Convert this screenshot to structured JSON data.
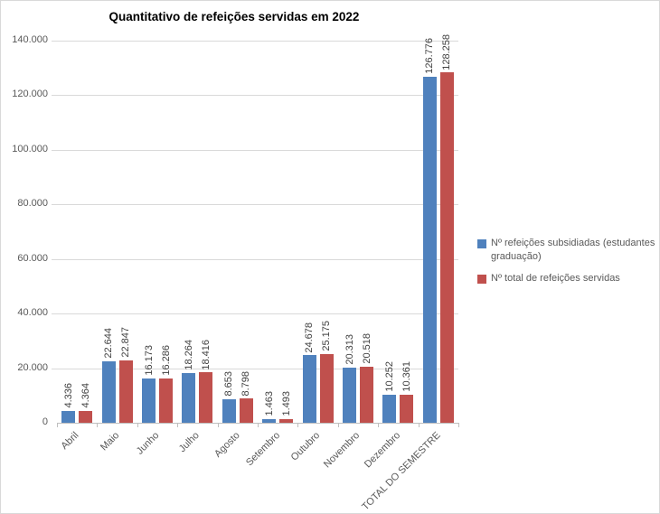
{
  "chart_data": {
    "type": "bar",
    "title": "Quantitativo de refeições servidas em 2022",
    "categories": [
      "Abril",
      "Maio",
      "Junho",
      "Julho",
      "Agosto",
      "Setembro",
      "Outubro",
      "Novembro",
      "Dezembro",
      "TOTAL DO SEMESTRE"
    ],
    "series": [
      {
        "name": "Nº refeições subsidiadas (estudantes graduação)",
        "color": "#4F81BD",
        "values": [
          4336,
          22644,
          16173,
          18264,
          8653,
          1463,
          24678,
          20313,
          10252,
          126776
        ],
        "labels": [
          "4.336",
          "22.644",
          "16.173",
          "18.264",
          "8.653",
          "1.463",
          "24.678",
          "20.313",
          "10.252",
          "126.776"
        ]
      },
      {
        "name": "Nº total de refeições servidas",
        "color": "#C0504D",
        "values": [
          4364,
          22847,
          16286,
          18416,
          8798,
          1493,
          25175,
          20518,
          10361,
          128258
        ],
        "labels": [
          "4.364",
          "22.847",
          "16.286",
          "18.416",
          "8.798",
          "1.493",
          "25.175",
          "20.518",
          "10.361",
          "128.258"
        ]
      }
    ],
    "xlabel": "",
    "ylabel": "",
    "ylim": [
      0,
      140000
    ],
    "ytick_step": 20000,
    "ytick_labels": [
      "0",
      "20.000",
      "40.000",
      "60.000",
      "80.000",
      "100.000",
      "120.000",
      "140.000"
    ],
    "grid": true,
    "data_labels": true,
    "legend_position": "right",
    "colors": {
      "gridline": "#d9d9d9",
      "axis": "#bfbfbf",
      "axis_text": "#595959",
      "data_label_text": "#404040",
      "title_text": "#000000"
    }
  }
}
